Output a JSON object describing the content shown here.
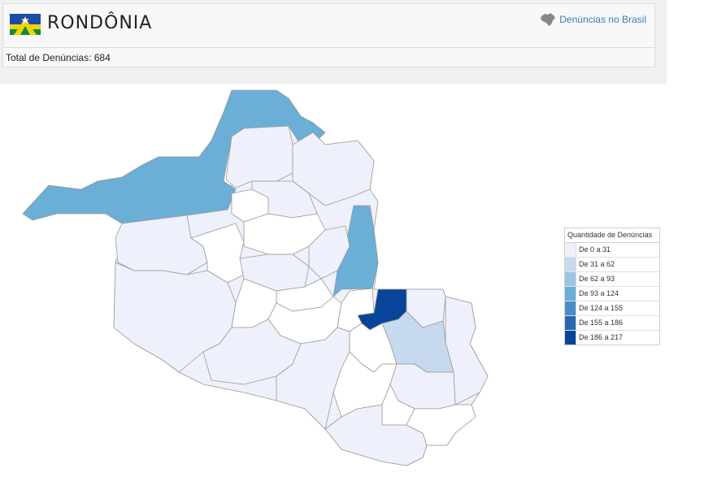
{
  "header": {
    "state_name": "RONDÔNIA",
    "total_label": "Total de Denúncias: 684",
    "brasil_link": "Denúncias no Brasil",
    "brasil_icon": "brazil-map-icon",
    "flag_icon": "rondonia-flag-icon"
  },
  "legend": {
    "title": "Quantidade de Denúncias",
    "ranges": [
      {
        "label": "De 0 a 31",
        "color": "#eef1fb"
      },
      {
        "label": "De 31 a 62",
        "color": "#c6d9ef"
      },
      {
        "label": "De 62 a 93",
        "color": "#9cc5e2"
      },
      {
        "label": "De 93 a 124",
        "color": "#6baed6"
      },
      {
        "label": "De 124 a 155",
        "color": "#4a8cc7"
      },
      {
        "label": "De 155 a 186",
        "color": "#2a67b0"
      },
      {
        "label": "De 186 a 217",
        "color": "#08459a"
      }
    ]
  },
  "colors": {
    "link": "#3a7fb3",
    "border": "#9a9a9a",
    "empty": "#ffffff"
  }
}
